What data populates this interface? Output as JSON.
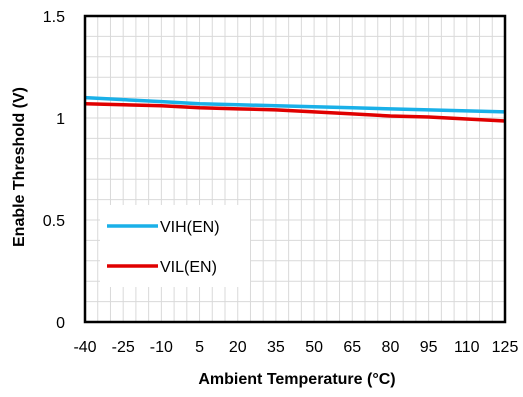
{
  "chart_data": {
    "type": "line",
    "title": "",
    "xlabel": "Ambient Temperature (°C)",
    "ylabel": "Enable Threshold (V)",
    "xlim": [
      -40,
      125
    ],
    "ylim": [
      0,
      1.5
    ],
    "x_ticks": [
      -40,
      -25,
      -10,
      5,
      20,
      35,
      50,
      65,
      80,
      95,
      110,
      125
    ],
    "x_tick_labels": [
      "-40",
      "-25",
      "-10",
      "5",
      "20",
      "35",
      "50",
      "65",
      "80",
      "95",
      "110",
      "125"
    ],
    "y_ticks": [
      0,
      0.5,
      1,
      1.5
    ],
    "y_tick_labels": [
      "0",
      "0.5",
      "1",
      "1.5"
    ],
    "grid": true,
    "legend_position": "bottom-left",
    "series": [
      {
        "name": "VIH(EN)",
        "color": "#1ab0e8",
        "x": [
          -40,
          -25,
          -10,
          5,
          20,
          35,
          50,
          65,
          80,
          95,
          110,
          125
        ],
        "values": [
          1.1,
          1.09,
          1.08,
          1.07,
          1.065,
          1.06,
          1.055,
          1.05,
          1.045,
          1.04,
          1.035,
          1.03
        ]
      },
      {
        "name": "VIL(EN)",
        "color": "#e00000",
        "x": [
          -40,
          -25,
          -10,
          5,
          20,
          35,
          50,
          65,
          80,
          95,
          110,
          125
        ],
        "values": [
          1.07,
          1.065,
          1.06,
          1.05,
          1.045,
          1.04,
          1.03,
          1.02,
          1.01,
          1.005,
          0.995,
          0.985
        ]
      }
    ]
  }
}
